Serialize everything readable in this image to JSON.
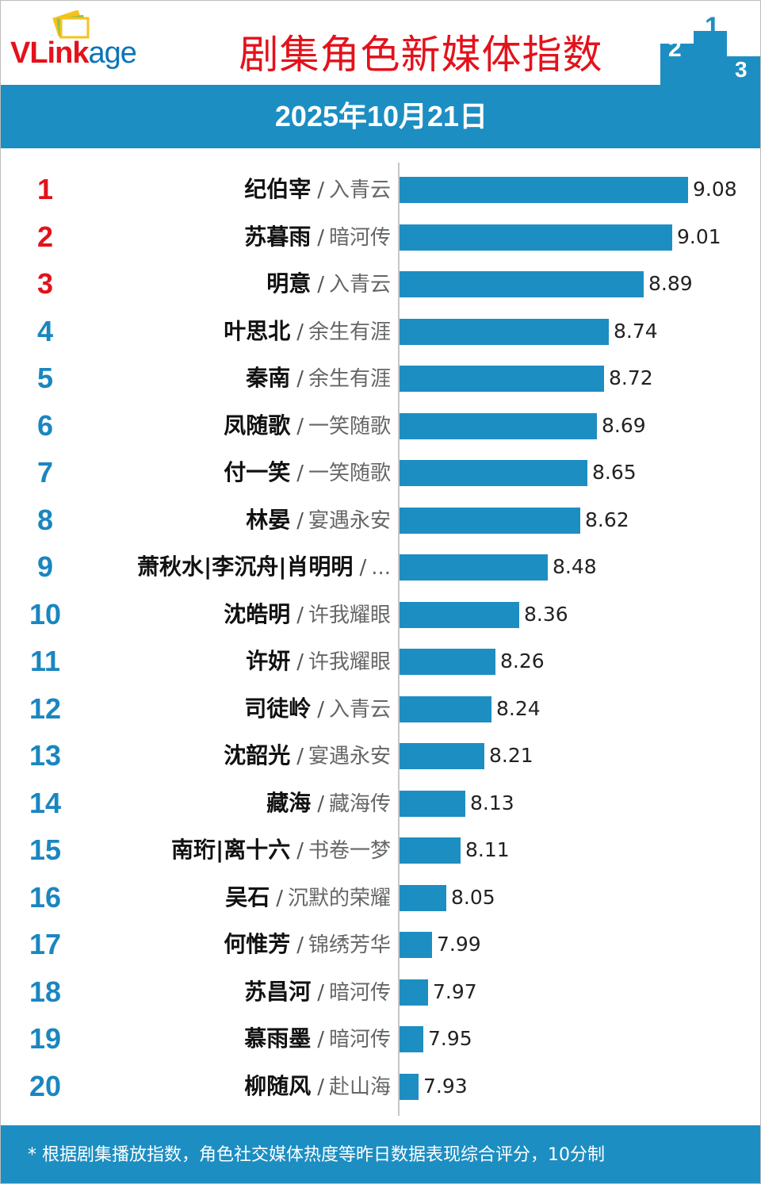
{
  "header": {
    "logo_text_a": "VLink",
    "logo_text_b": "age",
    "title": "剧集角色新媒体指数",
    "podium_labels": [
      "2",
      "1",
      "3"
    ]
  },
  "date": "2025年10月21日",
  "colors": {
    "accent_blue": "#1d8ec2",
    "brand_red": "#e3121b",
    "rank_blue": "#1a86c0"
  },
  "chart_data": {
    "type": "bar",
    "orientation": "horizontal",
    "categories": [
      "纪伯宰 / 入青云",
      "苏暮雨 / 暗河传",
      "明意 / 入青云",
      "叶思北 / 余生有涯",
      "秦南 / 余生有涯",
      "凤随歌 / 一笑随歌",
      "付一笑 / 一笑随歌",
      "林晏 / 宴遇永安",
      "萧秋水|李沉舟|肖明明 / ...",
      "沈皓明 / 许我耀眼",
      "许妍 / 许我耀眼",
      "司徒岭 / 入青云",
      "沈韶光 / 宴遇永安",
      "藏海 / 藏海传",
      "南珩|离十六 / 书卷一梦",
      "吴石 / 沉默的荣耀",
      "何惟芳 / 锦绣芳华",
      "苏昌河 / 暗河传",
      "慕雨墨 / 暗河传",
      "柳随风 / 赴山海"
    ],
    "values": [
      9.08,
      9.01,
      8.89,
      8.74,
      8.72,
      8.69,
      8.65,
      8.62,
      8.48,
      8.36,
      8.26,
      8.24,
      8.21,
      8.13,
      8.11,
      8.05,
      7.99,
      7.97,
      7.95,
      7.93
    ],
    "xlim": [
      7.85,
      9.2
    ],
    "grid": false,
    "legend": "none"
  },
  "rows": [
    {
      "rank": "1",
      "name": "纪伯宰",
      "sep": "/",
      "drama": "入青云",
      "value": "9.08"
    },
    {
      "rank": "2",
      "name": "苏暮雨",
      "sep": "/",
      "drama": "暗河传",
      "value": "9.01"
    },
    {
      "rank": "3",
      "name": "明意",
      "sep": "/",
      "drama": "入青云",
      "value": "8.89"
    },
    {
      "rank": "4",
      "name": "叶思北",
      "sep": "/",
      "drama": "余生有涯",
      "value": "8.74"
    },
    {
      "rank": "5",
      "name": "秦南",
      "sep": "/",
      "drama": "余生有涯",
      "value": "8.72"
    },
    {
      "rank": "6",
      "name": "凤随歌",
      "sep": "/",
      "drama": "一笑随歌",
      "value": "8.69"
    },
    {
      "rank": "7",
      "name": "付一笑",
      "sep": "/",
      "drama": "一笑随歌",
      "value": "8.65"
    },
    {
      "rank": "8",
      "name": "林晏",
      "sep": "/",
      "drama": "宴遇永安",
      "value": "8.62"
    },
    {
      "rank": "9",
      "name": "萧秋水|李沉舟|肖明明",
      "sep": "/",
      "drama": "...",
      "value": "8.48"
    },
    {
      "rank": "10",
      "name": "沈皓明",
      "sep": "/",
      "drama": "许我耀眼",
      "value": "8.36"
    },
    {
      "rank": "11",
      "name": "许妍",
      "sep": "/",
      "drama": "许我耀眼",
      "value": "8.26"
    },
    {
      "rank": "12",
      "name": "司徒岭",
      "sep": "/",
      "drama": "入青云",
      "value": "8.24"
    },
    {
      "rank": "13",
      "name": "沈韶光",
      "sep": "/",
      "drama": "宴遇永安",
      "value": "8.21"
    },
    {
      "rank": "14",
      "name": "藏海",
      "sep": "/",
      "drama": "藏海传",
      "value": "8.13"
    },
    {
      "rank": "15",
      "name": "南珩|离十六",
      "sep": "/",
      "drama": "书卷一梦",
      "value": "8.11"
    },
    {
      "rank": "16",
      "name": "吴石",
      "sep": "/",
      "drama": "沉默的荣耀",
      "value": "8.05"
    },
    {
      "rank": "17",
      "name": "何惟芳",
      "sep": "/",
      "drama": "锦绣芳华",
      "value": "7.99"
    },
    {
      "rank": "18",
      "name": "苏昌河",
      "sep": "/",
      "drama": "暗河传",
      "value": "7.97"
    },
    {
      "rank": "19",
      "name": "慕雨墨",
      "sep": "/",
      "drama": "暗河传",
      "value": "7.95"
    },
    {
      "rank": "20",
      "name": "柳随风",
      "sep": "/",
      "drama": "赴山海",
      "value": "7.93"
    }
  ],
  "footer": {
    "note": "* 根据剧集播放指数，角色社交媒体热度等昨日数据表现综合评分，10分制"
  }
}
